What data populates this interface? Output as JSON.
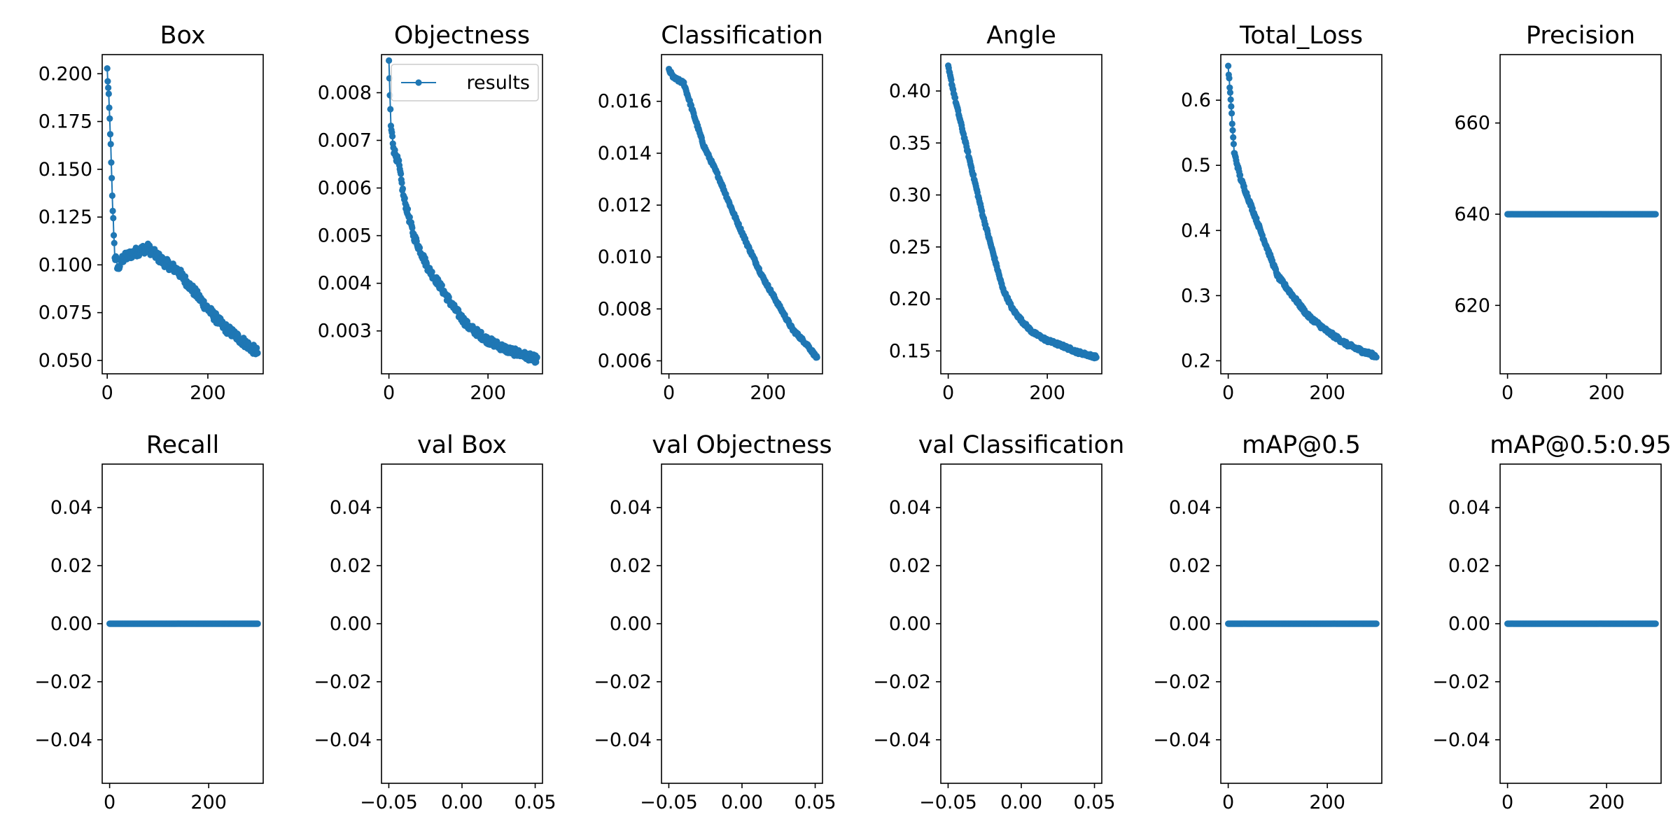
{
  "figure": {
    "legend_label": "results",
    "line_color": "#1f77b4"
  },
  "chart_data": [
    {
      "type": "line",
      "title": "Box",
      "xlim": [
        -10,
        310
      ],
      "ylim": [
        0.043,
        0.21
      ],
      "xticks": [
        {
          "v": 0,
          "label": "0"
        },
        {
          "v": 200,
          "label": "200"
        }
      ],
      "yticks": [
        {
          "v": 0.05,
          "label": "0.050"
        },
        {
          "v": 0.075,
          "label": "0.075"
        },
        {
          "v": 0.1,
          "label": "0.100"
        },
        {
          "v": 0.125,
          "label": "0.125"
        },
        {
          "v": 0.15,
          "label": "0.150"
        },
        {
          "v": 0.175,
          "label": "0.175"
        },
        {
          "v": 0.2,
          "label": "0.200"
        }
      ],
      "n_points": 300,
      "noise": 0.0025,
      "anchors": [
        [
          0,
          0.202
        ],
        [
          3,
          0.187
        ],
        [
          6,
          0.17
        ],
        [
          10,
          0.135
        ],
        [
          15,
          0.105
        ],
        [
          22,
          0.098
        ],
        [
          30,
          0.103
        ],
        [
          50,
          0.106
        ],
        [
          80,
          0.109
        ],
        [
          110,
          0.102
        ],
        [
          140,
          0.097
        ],
        [
          170,
          0.087
        ],
        [
          200,
          0.077
        ],
        [
          230,
          0.068
        ],
        [
          260,
          0.062
        ],
        [
          299,
          0.054
        ]
      ]
    },
    {
      "type": "line",
      "title": "Objectness",
      "xlim": [
        -15,
        310
      ],
      "ylim": [
        0.0021,
        0.0088
      ],
      "xticks": [
        {
          "v": 0,
          "label": "0"
        },
        {
          "v": 200,
          "label": "200"
        }
      ],
      "yticks": [
        {
          "v": 0.003,
          "label": "0.003"
        },
        {
          "v": 0.004,
          "label": "0.004"
        },
        {
          "v": 0.005,
          "label": "0.005"
        },
        {
          "v": 0.006,
          "label": "0.006"
        },
        {
          "v": 0.007,
          "label": "0.007"
        },
        {
          "v": 0.008,
          "label": "0.008"
        }
      ],
      "n_points": 300,
      "noise": 8e-05,
      "legend": true,
      "anchors": [
        [
          0,
          0.0086
        ],
        [
          4,
          0.0073
        ],
        [
          10,
          0.0068
        ],
        [
          20,
          0.0065
        ],
        [
          30,
          0.0058
        ],
        [
          50,
          0.005
        ],
        [
          80,
          0.0043
        ],
        [
          100,
          0.004
        ],
        [
          130,
          0.0035
        ],
        [
          160,
          0.0031
        ],
        [
          200,
          0.0028
        ],
        [
          240,
          0.0026
        ],
        [
          270,
          0.0025
        ],
        [
          299,
          0.0024
        ]
      ]
    },
    {
      "type": "line",
      "title": "Classification",
      "xlim": [
        -15,
        310
      ],
      "ylim": [
        0.0055,
        0.0178
      ],
      "xticks": [
        {
          "v": 0,
          "label": "0"
        },
        {
          "v": 200,
          "label": "200"
        }
      ],
      "yticks": [
        {
          "v": 0.006,
          "label": "0.006"
        },
        {
          "v": 0.008,
          "label": "0.008"
        },
        {
          "v": 0.01,
          "label": "0.010"
        },
        {
          "v": 0.012,
          "label": "0.012"
        },
        {
          "v": 0.014,
          "label": "0.014"
        },
        {
          "v": 0.016,
          "label": "0.016"
        }
      ],
      "n_points": 300,
      "noise": 6e-05,
      "anchors": [
        [
          0,
          0.0172
        ],
        [
          10,
          0.0169
        ],
        [
          30,
          0.0167
        ],
        [
          50,
          0.0155
        ],
        [
          70,
          0.0143
        ],
        [
          100,
          0.0131
        ],
        [
          130,
          0.0117
        ],
        [
          160,
          0.0104
        ],
        [
          190,
          0.0092
        ],
        [
          220,
          0.0082
        ],
        [
          250,
          0.0072
        ],
        [
          280,
          0.0066
        ],
        [
          299,
          0.0061
        ]
      ]
    },
    {
      "type": "line",
      "title": "Angle",
      "xlim": [
        -15,
        310
      ],
      "ylim": [
        0.128,
        0.435
      ],
      "xticks": [
        {
          "v": 0,
          "label": "0"
        },
        {
          "v": 200,
          "label": "200"
        }
      ],
      "yticks": [
        {
          "v": 0.15,
          "label": "0.15"
        },
        {
          "v": 0.2,
          "label": "0.20"
        },
        {
          "v": 0.25,
          "label": "0.25"
        },
        {
          "v": 0.3,
          "label": "0.30"
        },
        {
          "v": 0.35,
          "label": "0.35"
        },
        {
          "v": 0.4,
          "label": "0.40"
        }
      ],
      "n_points": 300,
      "noise": 0.0015,
      "anchors": [
        [
          0,
          0.423
        ],
        [
          15,
          0.39
        ],
        [
          30,
          0.36
        ],
        [
          50,
          0.32
        ],
        [
          70,
          0.28
        ],
        [
          90,
          0.245
        ],
        [
          110,
          0.21
        ],
        [
          130,
          0.19
        ],
        [
          150,
          0.178
        ],
        [
          170,
          0.168
        ],
        [
          200,
          0.16
        ],
        [
          230,
          0.155
        ],
        [
          260,
          0.149
        ],
        [
          299,
          0.144
        ]
      ]
    },
    {
      "type": "line",
      "title": "Total_Loss",
      "xlim": [
        -15,
        310
      ],
      "ylim": [
        0.18,
        0.67
      ],
      "xticks": [
        {
          "v": 0,
          "label": "0"
        },
        {
          "v": 200,
          "label": "200"
        }
      ],
      "yticks": [
        {
          "v": 0.2,
          "label": "0.2"
        },
        {
          "v": 0.3,
          "label": "0.3"
        },
        {
          "v": 0.4,
          "label": "0.4"
        },
        {
          "v": 0.5,
          "label": "0.5"
        },
        {
          "v": 0.6,
          "label": "0.6"
        }
      ],
      "n_points": 300,
      "noise": 0.003,
      "anchors": [
        [
          0,
          0.652
        ],
        [
          5,
          0.6
        ],
        [
          12,
          0.52
        ],
        [
          25,
          0.48
        ],
        [
          40,
          0.45
        ],
        [
          60,
          0.41
        ],
        [
          80,
          0.37
        ],
        [
          100,
          0.33
        ],
        [
          130,
          0.3
        ],
        [
          160,
          0.27
        ],
        [
          200,
          0.245
        ],
        [
          240,
          0.225
        ],
        [
          270,
          0.215
        ],
        [
          299,
          0.207
        ]
      ]
    },
    {
      "type": "line",
      "title": "Precision",
      "xlim": [
        -15,
        310
      ],
      "ylim": [
        605,
        675
      ],
      "xticks": [
        {
          "v": 0,
          "label": "0"
        },
        {
          "v": 200,
          "label": "200"
        }
      ],
      "yticks": [
        {
          "v": 620,
          "label": "620"
        },
        {
          "v": 640,
          "label": "640"
        },
        {
          "v": 660,
          "label": "660"
        }
      ],
      "n_points": 300,
      "noise": 0,
      "anchors": [
        [
          0,
          640
        ],
        [
          299,
          640
        ]
      ]
    },
    {
      "type": "line",
      "title": "Recall",
      "xlim": [
        -15,
        310
      ],
      "ylim": [
        -0.055,
        0.055
      ],
      "xticks": [
        {
          "v": 0,
          "label": "0"
        },
        {
          "v": 200,
          "label": "200"
        }
      ],
      "yticks": [
        {
          "v": -0.04,
          "label": "−0.04"
        },
        {
          "v": -0.02,
          "label": "−0.02"
        },
        {
          "v": 0,
          "label": "0.00"
        },
        {
          "v": 0.02,
          "label": "0.02"
        },
        {
          "v": 0.04,
          "label": "0.04"
        }
      ],
      "n_points": 300,
      "noise": 0,
      "anchors": [
        [
          0,
          0
        ],
        [
          299,
          0
        ]
      ]
    },
    {
      "type": "line",
      "title": "val Box",
      "xlim": [
        -0.055,
        0.055
      ],
      "ylim": [
        -0.055,
        0.055
      ],
      "xticks": [
        {
          "v": -0.05,
          "label": "−0.05"
        },
        {
          "v": 0,
          "label": "0.00"
        },
        {
          "v": 0.05,
          "label": "0.05"
        }
      ],
      "yticks": [
        {
          "v": -0.04,
          "label": "−0.04"
        },
        {
          "v": -0.02,
          "label": "−0.02"
        },
        {
          "v": 0,
          "label": "0.00"
        },
        {
          "v": 0.02,
          "label": "0.02"
        },
        {
          "v": 0.04,
          "label": "0.04"
        }
      ],
      "n_points": 0,
      "anchors": []
    },
    {
      "type": "line",
      "title": "val Objectness",
      "xlim": [
        -0.055,
        0.055
      ],
      "ylim": [
        -0.055,
        0.055
      ],
      "xticks": [
        {
          "v": -0.05,
          "label": "−0.05"
        },
        {
          "v": 0,
          "label": "0.00"
        },
        {
          "v": 0.05,
          "label": "0.05"
        }
      ],
      "yticks": [
        {
          "v": -0.04,
          "label": "−0.04"
        },
        {
          "v": -0.02,
          "label": "−0.02"
        },
        {
          "v": 0,
          "label": "0.00"
        },
        {
          "v": 0.02,
          "label": "0.02"
        },
        {
          "v": 0.04,
          "label": "0.04"
        }
      ],
      "n_points": 0,
      "anchors": []
    },
    {
      "type": "line",
      "title": "val Classification",
      "xlim": [
        -0.055,
        0.055
      ],
      "ylim": [
        -0.055,
        0.055
      ],
      "xticks": [
        {
          "v": -0.05,
          "label": "−0.05"
        },
        {
          "v": 0,
          "label": "0.00"
        },
        {
          "v": 0.05,
          "label": "0.05"
        }
      ],
      "yticks": [
        {
          "v": -0.04,
          "label": "−0.04"
        },
        {
          "v": -0.02,
          "label": "−0.02"
        },
        {
          "v": 0,
          "label": "0.00"
        },
        {
          "v": 0.02,
          "label": "0.02"
        },
        {
          "v": 0.04,
          "label": "0.04"
        }
      ],
      "n_points": 0,
      "anchors": []
    },
    {
      "type": "line",
      "title": "mAP@0.5",
      "xlim": [
        -15,
        310
      ],
      "ylim": [
        -0.055,
        0.055
      ],
      "xticks": [
        {
          "v": 0,
          "label": "0"
        },
        {
          "v": 200,
          "label": "200"
        }
      ],
      "yticks": [
        {
          "v": -0.04,
          "label": "−0.04"
        },
        {
          "v": -0.02,
          "label": "−0.02"
        },
        {
          "v": 0,
          "label": "0.00"
        },
        {
          "v": 0.02,
          "label": "0.02"
        },
        {
          "v": 0.04,
          "label": "0.04"
        }
      ],
      "n_points": 300,
      "noise": 0,
      "anchors": [
        [
          0,
          0
        ],
        [
          299,
          0
        ]
      ]
    },
    {
      "type": "line",
      "title": "mAP@0.5:0.95",
      "xlim": [
        -15,
        310
      ],
      "ylim": [
        -0.055,
        0.055
      ],
      "xticks": [
        {
          "v": 0,
          "label": "0"
        },
        {
          "v": 200,
          "label": "200"
        }
      ],
      "yticks": [
        {
          "v": -0.04,
          "label": "−0.04"
        },
        {
          "v": -0.02,
          "label": "−0.02"
        },
        {
          "v": 0,
          "label": "0.00"
        },
        {
          "v": 0.02,
          "label": "0.02"
        },
        {
          "v": 0.04,
          "label": "0.04"
        }
      ],
      "n_points": 300,
      "noise": 0,
      "anchors": [
        [
          0,
          0
        ],
        [
          299,
          0
        ]
      ]
    }
  ]
}
